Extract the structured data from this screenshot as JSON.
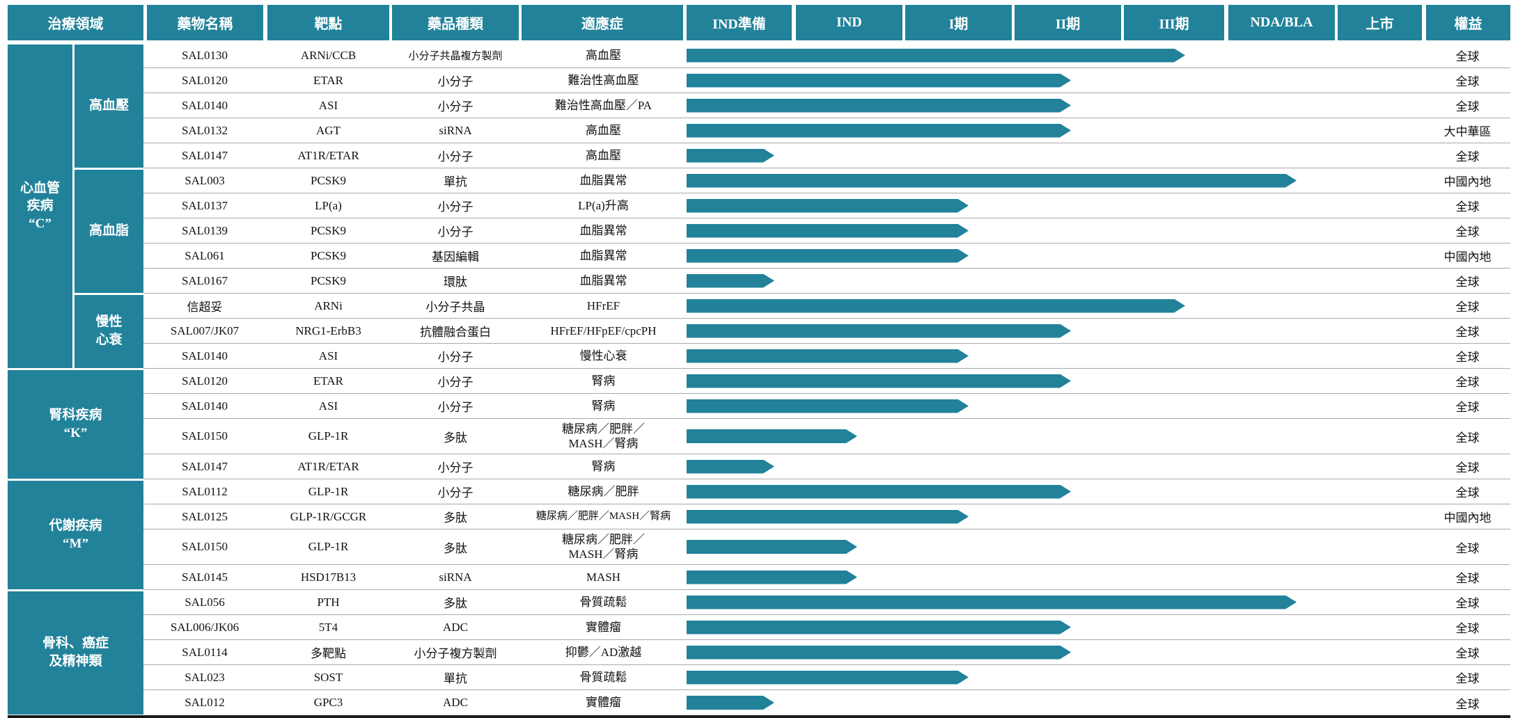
{
  "colors": {
    "accent": "#21829A",
    "row_separator": "#A8A8A8",
    "bottom_rule": "#1A1A1A",
    "header_text": "#FFFFFF",
    "body_text": "#111111"
  },
  "chart_data": {
    "type": "table",
    "description": "藥物研發管線圖：候選藥物及其臨床開發階段（箭頭表示進度）",
    "header_cells": [
      "治療領域",
      "藥物名稱",
      "靶點",
      "藥品種類",
      "適應症",
      "IND準備",
      "IND",
      "I期",
      "II期",
      "III期",
      "NDA/BLA",
      "上市",
      "權益"
    ],
    "stages": [
      "IND準備",
      "IND",
      "I期",
      "II期",
      "III期",
      "NDA/BLA",
      "上市"
    ],
    "groups": [
      {
        "label": "心血管\n疾病\n“C”",
        "start": 0,
        "end": 12,
        "subgroups": [
          {
            "label": "高血壓",
            "start": 0,
            "end": 4
          },
          {
            "label": "高血脂",
            "start": 5,
            "end": 9
          },
          {
            "label": "慢性\n心衰",
            "start": 10,
            "end": 12
          }
        ]
      },
      {
        "label": "腎科疾病\n“K”",
        "start": 13,
        "end": 16,
        "subgroups": []
      },
      {
        "label": "代謝疾病\n“M”",
        "start": 17,
        "end": 20,
        "subgroups": []
      },
      {
        "label": "骨科、癌症\n及精神類",
        "start": 21,
        "end": 25,
        "subgroups": []
      }
    ],
    "rows": [
      {
        "drug": "SAL0130",
        "target": "ARNi/CCB",
        "type": "小分子共晶複方製劑",
        "indication": "高血壓",
        "stage": "III期",
        "bar_frac": 0.675,
        "rights": "全球"
      },
      {
        "drug": "SAL0120",
        "target": "ETAR",
        "type": "小分子",
        "indication": "難治性高血壓",
        "stage": "II期",
        "bar_frac": 0.521,
        "rights": "全球"
      },
      {
        "drug": "SAL0140",
        "target": "ASI",
        "type": "小分子",
        "indication": "難治性高血壓／PA",
        "stage": "II期",
        "bar_frac": 0.521,
        "rights": "全球"
      },
      {
        "drug": "SAL0132",
        "target": "AGT",
        "type": "siRNA",
        "indication": "高血壓",
        "stage": "II期",
        "bar_frac": 0.521,
        "rights": "大中華區"
      },
      {
        "drug": "SAL0147",
        "target": "AT1R/ETAR",
        "type": "小分子",
        "indication": "高血壓",
        "stage": "IND準備",
        "bar_frac": 0.119,
        "rights": "全球"
      },
      {
        "drug": "SAL003",
        "target": "PCSK9",
        "type": "單抗",
        "indication": "血脂異常",
        "stage": "NDA/BLA",
        "bar_frac": 0.826,
        "rights": "中國內地"
      },
      {
        "drug": "SAL0137",
        "target": "LP(a)",
        "type": "小分子",
        "indication": "LP(a)升高",
        "stage": "I期",
        "bar_frac": 0.382,
        "rights": "全球"
      },
      {
        "drug": "SAL0139",
        "target": "PCSK9",
        "type": "小分子",
        "indication": "血脂異常",
        "stage": "I期",
        "bar_frac": 0.382,
        "rights": "全球"
      },
      {
        "drug": "SAL061",
        "target": "PCSK9",
        "type": "基因編輯",
        "indication": "血脂異常",
        "stage": "I期",
        "bar_frac": 0.382,
        "rights": "中國內地"
      },
      {
        "drug": "SAL0167",
        "target": "PCSK9",
        "type": "環肽",
        "indication": "血脂異常",
        "stage": "IND準備",
        "bar_frac": 0.119,
        "rights": "全球"
      },
      {
        "drug": "信超妥",
        "target": "ARNi",
        "type": "小分子共晶",
        "indication": "HFrEF",
        "stage": "III期",
        "bar_frac": 0.675,
        "rights": "全球"
      },
      {
        "drug": "SAL007/JK07",
        "target": "NRG1-ErbB3",
        "type": "抗體融合蛋白",
        "indication": "HFrEF/HFpEF/cpcPH",
        "stage": "II期",
        "bar_frac": 0.521,
        "rights": "全球"
      },
      {
        "drug": "SAL0140",
        "target": "ASI",
        "type": "小分子",
        "indication": "慢性心衰",
        "stage": "I期",
        "bar_frac": 0.382,
        "rights": "全球"
      },
      {
        "drug": "SAL0120",
        "target": "ETAR",
        "type": "小分子",
        "indication": "腎病",
        "stage": "II期",
        "bar_frac": 0.521,
        "rights": "全球"
      },
      {
        "drug": "SAL0140",
        "target": "ASI",
        "type": "小分子",
        "indication": "腎病",
        "stage": "I期",
        "bar_frac": 0.382,
        "rights": "全球"
      },
      {
        "drug": "SAL0150",
        "target": "GLP-1R",
        "type": "多肽",
        "indication": "糖尿病／肥胖／\nMASH／腎病",
        "stage": "IND",
        "bar_frac": 0.231,
        "rights": "全球"
      },
      {
        "drug": "SAL0147",
        "target": "AT1R/ETAR",
        "type": "小分子",
        "indication": "腎病",
        "stage": "IND準備",
        "bar_frac": 0.119,
        "rights": "全球"
      },
      {
        "drug": "SAL0112",
        "target": "GLP-1R",
        "type": "小分子",
        "indication": "糖尿病／肥胖",
        "stage": "II期",
        "bar_frac": 0.521,
        "rights": "全球"
      },
      {
        "drug": "SAL0125",
        "target": "GLP-1R/GCGR",
        "type": "多肽",
        "indication": "糖尿病／肥胖／MASH／腎病",
        "stage": "I期",
        "bar_frac": 0.382,
        "rights": "中國內地"
      },
      {
        "drug": "SAL0150",
        "target": "GLP-1R",
        "type": "多肽",
        "indication": "糖尿病／肥胖／\nMASH／腎病",
        "stage": "IND",
        "bar_frac": 0.231,
        "rights": "全球"
      },
      {
        "drug": "SAL0145",
        "target": "HSD17B13",
        "type": "siRNA",
        "indication": "MASH",
        "stage": "IND",
        "bar_frac": 0.231,
        "rights": "全球"
      },
      {
        "drug": "SAL056",
        "target": "PTH",
        "type": "多肽",
        "indication": "骨質疏鬆",
        "stage": "NDA/BLA",
        "bar_frac": 0.826,
        "rights": "全球"
      },
      {
        "drug": "SAL006/JK06",
        "target": "5T4",
        "type": "ADC",
        "indication": "實體瘤",
        "stage": "II期",
        "bar_frac": 0.521,
        "rights": "全球"
      },
      {
        "drug": "SAL0114",
        "target": "多靶點",
        "type": "小分子複方製劑",
        "indication": "抑鬱／AD激越",
        "stage": "II期",
        "bar_frac": 0.521,
        "rights": "全球"
      },
      {
        "drug": "SAL023",
        "target": "SOST",
        "type": "單抗",
        "indication": "骨質疏鬆",
        "stage": "I期",
        "bar_frac": 0.382,
        "rights": "全球"
      },
      {
        "drug": "SAL012",
        "target": "GPC3",
        "type": "ADC",
        "indication": "實體瘤",
        "stage": "IND準備",
        "bar_frac": 0.119,
        "rights": "全球"
      }
    ]
  }
}
